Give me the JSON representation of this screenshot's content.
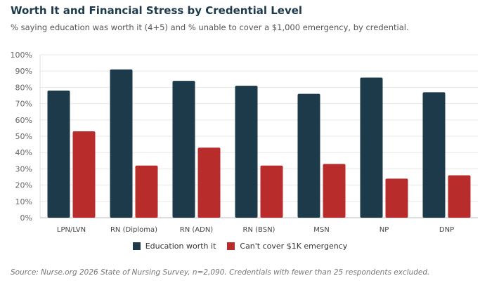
{
  "chart_data": {
    "type": "bar",
    "title": "Worth It and Financial Stress by Credential Level",
    "subtitle": "% saying education was worth it (4+5) and % unable to cover a $1,000 emergency, by credential.",
    "categories": [
      "LPN/LVN",
      "RN (Diploma)",
      "RN (ADN)",
      "RN (BSN)",
      "MSN",
      "NP",
      "DNP"
    ],
    "series": [
      {
        "name": "Education worth it",
        "color": "#1c3a4a",
        "values": [
          78,
          91,
          84,
          81,
          76,
          86,
          77
        ]
      },
      {
        "name": "Can't cover $1K emergency",
        "color": "#b82c2c",
        "values": [
          53,
          32,
          43,
          32,
          33,
          24,
          26
        ]
      }
    ],
    "ylim": [
      0,
      100
    ],
    "yticks": [
      "0%",
      "10%",
      "20%",
      "30%",
      "40%",
      "50%",
      "60%",
      "70%",
      "80%",
      "90%",
      "100%"
    ],
    "grid": true,
    "legend_placement": "bottom",
    "source": "Source: Nurse.org 2026 State of Nursing Survey, n=2,090. Credentials with fewer than 25 respondents excluded."
  }
}
